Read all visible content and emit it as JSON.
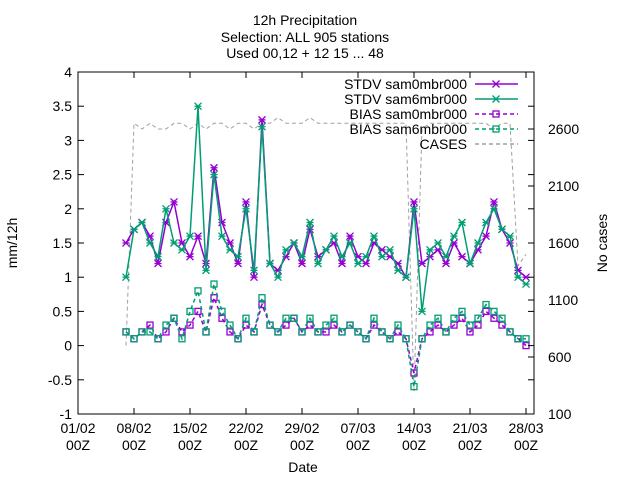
{
  "chart_data": {
    "type": "line",
    "title_lines": [
      "12h Precipitation",
      "Selection: ALL    905 stations",
      "Used 00,12 + 12 15 ... 48"
    ],
    "xlabel": "Date",
    "ylabel": "mm/12h",
    "y2label": "No cases",
    "xlim": [
      "2024-02-01 00:00",
      "2024-03-29 00:00"
    ],
    "ylim": [
      -1,
      4
    ],
    "y2lim": [
      100,
      3100
    ],
    "xticks": [
      {
        "date": "2024-02-01",
        "label": [
          "01/02",
          "00Z"
        ]
      },
      {
        "date": "2024-02-08",
        "label": [
          "08/02",
          "00Z"
        ]
      },
      {
        "date": "2024-02-15",
        "label": [
          "15/02",
          "00Z"
        ]
      },
      {
        "date": "2024-02-22",
        "label": [
          "22/02",
          "00Z"
        ]
      },
      {
        "date": "2024-02-29",
        "label": [
          "29/02",
          "00Z"
        ]
      },
      {
        "date": "2024-03-07",
        "label": [
          "07/03",
          "00Z"
        ]
      },
      {
        "date": "2024-03-14",
        "label": [
          "14/03",
          "00Z"
        ]
      },
      {
        "date": "2024-03-21",
        "label": [
          "21/03",
          "00Z"
        ]
      },
      {
        "date": "2024-03-28",
        "label": [
          "28/03",
          "00Z"
        ]
      }
    ],
    "yticks": [
      "-1",
      "-0.5",
      "0",
      "0.5",
      "1",
      "1.5",
      "2",
      "2.5",
      "3",
      "3.5",
      "4"
    ],
    "y2ticks": [
      "100",
      "600",
      "1100",
      "1600",
      "2100",
      "2600"
    ],
    "legend_position": "top-right",
    "grid": false,
    "series": [
      {
        "name": "STDV sam0mbr000",
        "color": "#9400d3",
        "marker": "x-star",
        "dash": "solid",
        "axis": "y",
        "x": [
          "2024-02-07 00:00",
          "2024-02-08 00:00",
          "2024-02-09 00:00",
          "2024-02-10 00:00",
          "2024-02-11 00:00",
          "2024-02-12 00:00",
          "2024-02-13 00:00",
          "2024-02-14 00:00",
          "2024-02-15 00:00",
          "2024-02-16 00:00",
          "2024-02-17 00:00",
          "2024-02-18 00:00",
          "2024-02-19 00:00",
          "2024-02-20 00:00",
          "2024-02-21 00:00",
          "2024-02-22 00:00",
          "2024-02-23 00:00",
          "2024-02-24 00:00",
          "2024-02-25 00:00",
          "2024-02-26 00:00",
          "2024-02-27 00:00",
          "2024-02-28 00:00",
          "2024-02-29 00:00",
          "2024-03-01 00:00",
          "2024-03-02 00:00",
          "2024-03-03 00:00",
          "2024-03-04 00:00",
          "2024-03-05 00:00",
          "2024-03-06 00:00",
          "2024-03-07 00:00",
          "2024-03-08 00:00",
          "2024-03-09 00:00",
          "2024-03-10 00:00",
          "2024-03-11 00:00",
          "2024-03-12 00:00",
          "2024-03-13 00:00",
          "2024-03-14 00:00",
          "2024-03-15 00:00",
          "2024-03-16 00:00",
          "2024-03-17 00:00",
          "2024-03-18 00:00",
          "2024-03-19 00:00",
          "2024-03-20 00:00",
          "2024-03-21 00:00",
          "2024-03-22 00:00",
          "2024-03-23 00:00",
          "2024-03-24 00:00",
          "2024-03-25 00:00",
          "2024-03-26 00:00",
          "2024-03-27 00:00",
          "2024-03-28 00:00"
        ],
        "y": [
          1.5,
          1.7,
          1.8,
          1.6,
          1.2,
          1.8,
          2.1,
          1.5,
          1.3,
          1.6,
          1.2,
          2.6,
          1.8,
          1.5,
          1.2,
          2.1,
          1.0,
          3.3,
          1.2,
          1.1,
          1.3,
          1.5,
          1.2,
          1.7,
          1.3,
          1.4,
          1.5,
          1.2,
          1.6,
          1.3,
          1.2,
          1.5,
          1.4,
          1.3,
          1.2,
          1.0,
          2.1,
          1.2,
          1.3,
          1.4,
          1.2,
          1.5,
          1.3,
          1.2,
          1.4,
          1.6,
          2.1,
          1.7,
          1.5,
          1.1,
          1.0
        ]
      },
      {
        "name": "STDV sam6mbr000",
        "color": "#009e73",
        "marker": "x-star",
        "dash": "solid",
        "axis": "y",
        "x": [
          "2024-02-07 00:00",
          "2024-02-08 00:00",
          "2024-02-09 00:00",
          "2024-02-10 00:00",
          "2024-02-11 00:00",
          "2024-02-12 00:00",
          "2024-02-13 00:00",
          "2024-02-14 00:00",
          "2024-02-15 00:00",
          "2024-02-16 00:00",
          "2024-02-17 00:00",
          "2024-02-18 00:00",
          "2024-02-19 00:00",
          "2024-02-20 00:00",
          "2024-02-21 00:00",
          "2024-02-22 00:00",
          "2024-02-23 00:00",
          "2024-02-24 00:00",
          "2024-02-25 00:00",
          "2024-02-26 00:00",
          "2024-02-27 00:00",
          "2024-02-28 00:00",
          "2024-02-29 00:00",
          "2024-03-01 00:00",
          "2024-03-02 00:00",
          "2024-03-03 00:00",
          "2024-03-04 00:00",
          "2024-03-05 00:00",
          "2024-03-06 00:00",
          "2024-03-07 00:00",
          "2024-03-08 00:00",
          "2024-03-09 00:00",
          "2024-03-10 00:00",
          "2024-03-11 00:00",
          "2024-03-12 00:00",
          "2024-03-13 00:00",
          "2024-03-14 00:00",
          "2024-03-15 00:00",
          "2024-03-16 00:00",
          "2024-03-17 00:00",
          "2024-03-18 00:00",
          "2024-03-19 00:00",
          "2024-03-20 00:00",
          "2024-03-21 00:00",
          "2024-03-22 00:00",
          "2024-03-23 00:00",
          "2024-03-24 00:00",
          "2024-03-25 00:00",
          "2024-03-26 00:00",
          "2024-03-27 00:00",
          "2024-03-28 00:00"
        ],
        "y": [
          1.0,
          1.7,
          1.8,
          1.5,
          1.3,
          2.0,
          1.5,
          1.4,
          1.6,
          3.5,
          1.1,
          2.5,
          1.6,
          1.4,
          1.3,
          2.0,
          1.1,
          3.2,
          1.2,
          1.0,
          1.4,
          1.5,
          1.3,
          1.8,
          1.2,
          1.4,
          1.6,
          1.3,
          1.5,
          1.2,
          1.3,
          1.6,
          1.3,
          1.4,
          1.1,
          1.0,
          2.0,
          0.5,
          1.4,
          1.5,
          1.3,
          1.6,
          1.8,
          1.2,
          1.5,
          1.8,
          2.0,
          1.7,
          1.6,
          1.0,
          0.9
        ]
      },
      {
        "name": "BIAS sam0mbr000",
        "color": "#9400d3",
        "marker": "square",
        "dash": "dashed",
        "axis": "y",
        "x": [
          "2024-02-07 00:00",
          "2024-02-08 00:00",
          "2024-02-09 00:00",
          "2024-02-10 00:00",
          "2024-02-11 00:00",
          "2024-02-12 00:00",
          "2024-02-13 00:00",
          "2024-02-14 00:00",
          "2024-02-15 00:00",
          "2024-02-16 00:00",
          "2024-02-17 00:00",
          "2024-02-18 00:00",
          "2024-02-19 00:00",
          "2024-02-20 00:00",
          "2024-02-21 00:00",
          "2024-02-22 00:00",
          "2024-02-23 00:00",
          "2024-02-24 00:00",
          "2024-02-25 00:00",
          "2024-02-26 00:00",
          "2024-02-27 00:00",
          "2024-02-28 00:00",
          "2024-02-29 00:00",
          "2024-03-01 00:00",
          "2024-03-02 00:00",
          "2024-03-03 00:00",
          "2024-03-04 00:00",
          "2024-03-05 00:00",
          "2024-03-06 00:00",
          "2024-03-07 00:00",
          "2024-03-08 00:00",
          "2024-03-09 00:00",
          "2024-03-10 00:00",
          "2024-03-11 00:00",
          "2024-03-12 00:00",
          "2024-03-13 00:00",
          "2024-03-14 00:00",
          "2024-03-15 00:00",
          "2024-03-16 00:00",
          "2024-03-17 00:00",
          "2024-03-18 00:00",
          "2024-03-19 00:00",
          "2024-03-20 00:00",
          "2024-03-21 00:00",
          "2024-03-22 00:00",
          "2024-03-23 00:00",
          "2024-03-24 00:00",
          "2024-03-25 00:00",
          "2024-03-26 00:00",
          "2024-03-27 00:00",
          "2024-03-28 00:00"
        ],
        "y": [
          0.2,
          0.1,
          0.2,
          0.3,
          0.1,
          0.2,
          0.4,
          0.2,
          0.3,
          0.5,
          0.2,
          0.7,
          0.4,
          0.2,
          0.1,
          0.3,
          0.2,
          0.6,
          0.3,
          0.2,
          0.3,
          0.4,
          0.2,
          0.3,
          0.2,
          0.2,
          0.3,
          0.2,
          0.3,
          0.2,
          0.1,
          0.3,
          0.2,
          0.1,
          0.2,
          0.1,
          -0.4,
          0.1,
          0.2,
          0.3,
          0.2,
          0.3,
          0.4,
          0.2,
          0.3,
          0.5,
          0.4,
          0.3,
          0.2,
          0.1,
          0.0
        ]
      },
      {
        "name": "BIAS sam6mbr000",
        "color": "#009e73",
        "marker": "square",
        "dash": "dashed",
        "axis": "y",
        "x": [
          "2024-02-07 00:00",
          "2024-02-08 00:00",
          "2024-02-09 00:00",
          "2024-02-10 00:00",
          "2024-02-11 00:00",
          "2024-02-12 00:00",
          "2024-02-13 00:00",
          "2024-02-14 00:00",
          "2024-02-15 00:00",
          "2024-02-16 00:00",
          "2024-02-17 00:00",
          "2024-02-18 00:00",
          "2024-02-19 00:00",
          "2024-02-20 00:00",
          "2024-02-21 00:00",
          "2024-02-22 00:00",
          "2024-02-23 00:00",
          "2024-02-24 00:00",
          "2024-02-25 00:00",
          "2024-02-26 00:00",
          "2024-02-27 00:00",
          "2024-02-28 00:00",
          "2024-02-29 00:00",
          "2024-03-01 00:00",
          "2024-03-02 00:00",
          "2024-03-03 00:00",
          "2024-03-04 00:00",
          "2024-03-05 00:00",
          "2024-03-06 00:00",
          "2024-03-07 00:00",
          "2024-03-08 00:00",
          "2024-03-09 00:00",
          "2024-03-10 00:00",
          "2024-03-11 00:00",
          "2024-03-12 00:00",
          "2024-03-13 00:00",
          "2024-03-14 00:00",
          "2024-03-15 00:00",
          "2024-03-16 00:00",
          "2024-03-17 00:00",
          "2024-03-18 00:00",
          "2024-03-19 00:00",
          "2024-03-20 00:00",
          "2024-03-21 00:00",
          "2024-03-22 00:00",
          "2024-03-23 00:00",
          "2024-03-24 00:00",
          "2024-03-25 00:00",
          "2024-03-26 00:00",
          "2024-03-27 00:00",
          "2024-03-28 00:00"
        ],
        "y": [
          0.2,
          0.1,
          0.2,
          0.2,
          0.1,
          0.3,
          0.4,
          0.1,
          0.5,
          0.8,
          0.2,
          0.9,
          0.5,
          0.3,
          0.1,
          0.4,
          0.2,
          0.7,
          0.3,
          0.2,
          0.4,
          0.4,
          0.2,
          0.4,
          0.2,
          0.3,
          0.4,
          0.2,
          0.3,
          0.2,
          0.1,
          0.4,
          0.2,
          0.1,
          0.3,
          0.1,
          -0.6,
          0.1,
          0.3,
          0.4,
          0.2,
          0.4,
          0.5,
          0.3,
          0.4,
          0.6,
          0.5,
          0.4,
          0.2,
          0.1,
          0.1
        ]
      },
      {
        "name": "CASES",
        "color": "#a0a0a0",
        "marker": "none",
        "dash": "dashed",
        "axis": "y2",
        "x": [
          "2024-02-07 00:00",
          "2024-02-08 00:00",
          "2024-02-09 00:00",
          "2024-02-10 00:00",
          "2024-02-11 00:00",
          "2024-02-12 00:00",
          "2024-02-13 00:00",
          "2024-02-14 00:00",
          "2024-02-15 00:00",
          "2024-02-16 00:00",
          "2024-02-17 00:00",
          "2024-02-18 00:00",
          "2024-02-19 00:00",
          "2024-02-20 00:00",
          "2024-02-21 00:00",
          "2024-02-22 00:00",
          "2024-02-23 00:00",
          "2024-02-24 00:00",
          "2024-02-25 00:00",
          "2024-02-26 00:00",
          "2024-02-27 00:00",
          "2024-02-28 00:00",
          "2024-02-29 00:00",
          "2024-03-01 00:00",
          "2024-03-02 00:00",
          "2024-03-03 00:00",
          "2024-03-04 00:00",
          "2024-03-05 00:00",
          "2024-03-06 00:00",
          "2024-03-07 00:00",
          "2024-03-08 00:00",
          "2024-03-09 00:00",
          "2024-03-10 00:00",
          "2024-03-11 00:00",
          "2024-03-12 00:00",
          "2024-03-13 00:00",
          "2024-03-14 00:00",
          "2024-03-15 00:00",
          "2024-03-16 00:00",
          "2024-03-17 00:00",
          "2024-03-18 00:00",
          "2024-03-19 00:00",
          "2024-03-20 00:00",
          "2024-03-21 00:00",
          "2024-03-22 00:00",
          "2024-03-23 00:00",
          "2024-03-24 00:00",
          "2024-03-25 00:00",
          "2024-03-26 00:00",
          "2024-03-27 00:00",
          "2024-03-28 00:00"
        ],
        "y": [
          700,
          2650,
          2600,
          2650,
          2600,
          2600,
          2650,
          2650,
          2600,
          2650,
          2600,
          2650,
          2650,
          2600,
          2650,
          2650,
          2600,
          2650,
          2650,
          2700,
          2650,
          2650,
          2650,
          2700,
          2650,
          2650,
          2650,
          2650,
          2650,
          2650,
          2650,
          2650,
          2650,
          2650,
          2650,
          2650,
          300,
          2600,
          2650,
          2650,
          2650,
          2650,
          2650,
          2650,
          2650,
          2650,
          2600,
          2650,
          2650,
          1400,
          1500
        ]
      }
    ]
  }
}
